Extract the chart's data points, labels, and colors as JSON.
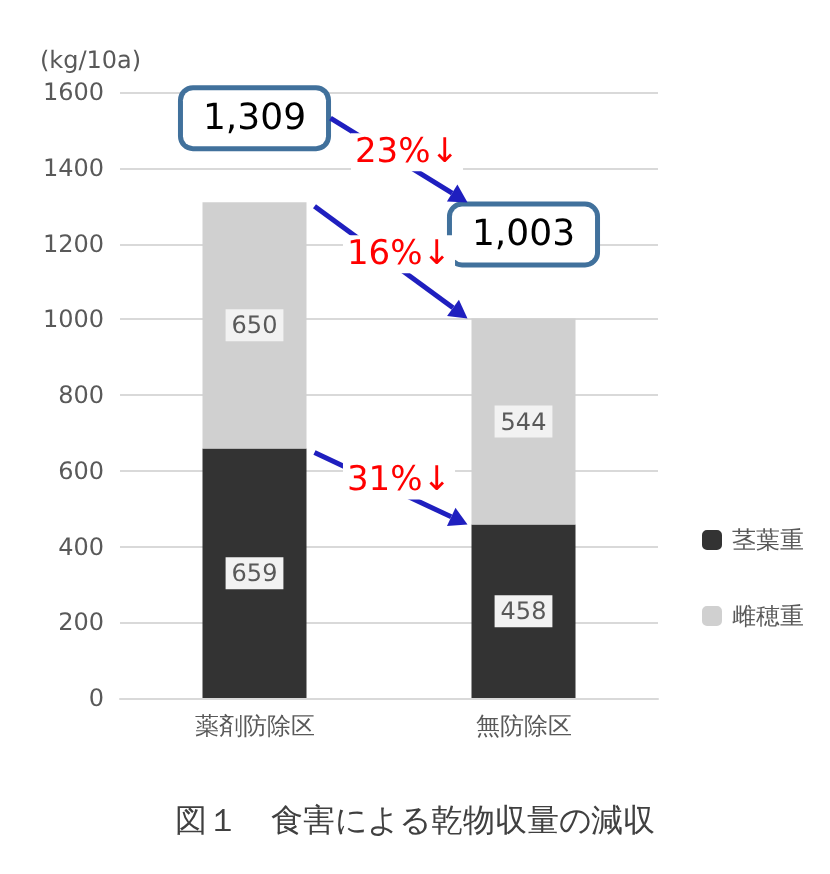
{
  "chart_data": {
    "type": "bar",
    "title": "図１　食害による乾物収量の減収",
    "ylabel": "(kg/10a)",
    "categories": [
      "薬剤防除区",
      "無防除区"
    ],
    "stacked": true,
    "series": [
      {
        "name": "茎葉重",
        "color": "#333333",
        "values": [
          659,
          458
        ]
      },
      {
        "name": "雌穂重",
        "color": "#d0d0d0",
        "values": [
          650,
          544
        ]
      }
    ],
    "ylim": [
      0,
      1600
    ],
    "yticks": [
      0,
      200,
      400,
      600,
      800,
      1000,
      1200,
      1400,
      1600
    ],
    "grid": "y",
    "legend": "right",
    "data_labels": true,
    "totals": [
      "1,309",
      "1,003"
    ],
    "annotations": [
      "23%↓",
      "16%↓",
      "31%↓"
    ]
  }
}
